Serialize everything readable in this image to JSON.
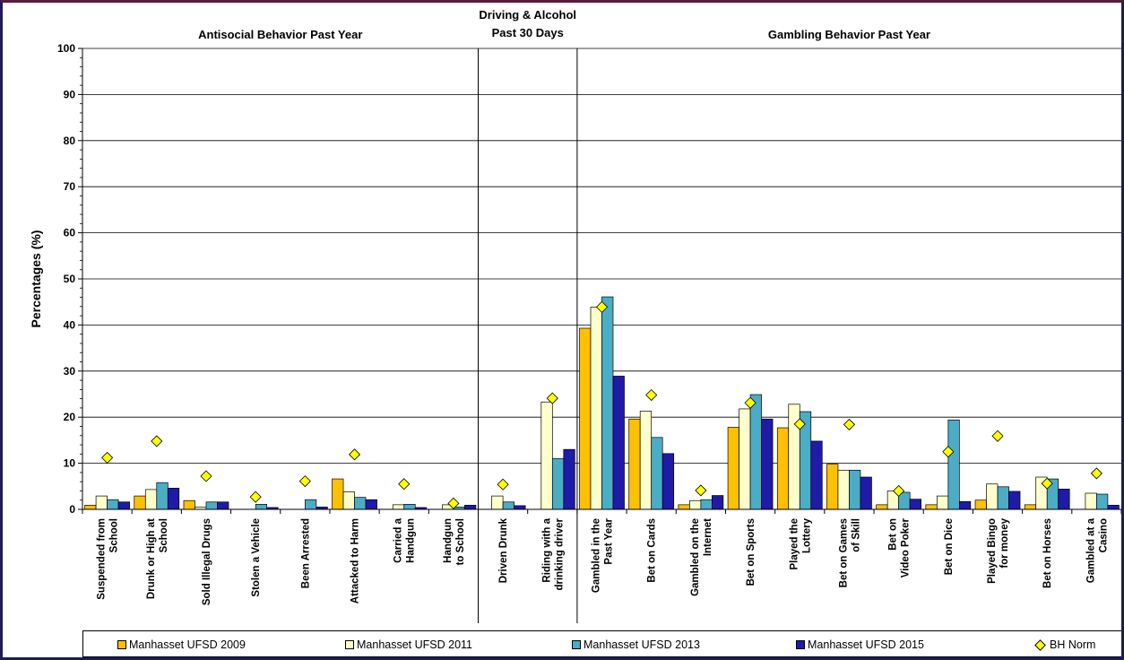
{
  "chart_data": {
    "type": "bar",
    "ylabel": "Percentages (%)",
    "ylim": [
      0,
      100
    ],
    "yticks": [
      0,
      10,
      20,
      30,
      40,
      50,
      60,
      70,
      80,
      90,
      100
    ],
    "grid": true,
    "legend_position": "bottom",
    "sections": [
      {
        "title": [
          "Antisocial Behavior Past Year"
        ],
        "start": 0,
        "end": 8
      },
      {
        "title": [
          "Driving & Alcohol",
          "Past 30 Days"
        ],
        "start": 8,
        "end": 10
      },
      {
        "title": [
          "Gambling Behavior Past Year"
        ],
        "start": 10,
        "end": 21
      }
    ],
    "categories": [
      [
        "Suspended from",
        "School"
      ],
      [
        "Drunk or High at",
        "School"
      ],
      [
        "Sold Illegal Drugs"
      ],
      [
        "Stolen a Vehicle"
      ],
      [
        "Been Arrested"
      ],
      [
        "Attacked to Harm"
      ],
      [
        "Carried a",
        "Handgun"
      ],
      [
        "Handgun",
        "to School"
      ],
      [
        "Driven Drunk"
      ],
      [
        "Riding with a",
        "drinking driver"
      ],
      [
        "Gambled in the",
        "Past Year"
      ],
      [
        "Bet on Cards"
      ],
      [
        "Gambled on the",
        "Internet"
      ],
      [
        "Bet on Sports"
      ],
      [
        "Played the",
        "Lottery"
      ],
      [
        "Bet on Games",
        "of Skill"
      ],
      [
        "Bet on",
        "Video Poker"
      ],
      [
        "Bet on Dice"
      ],
      [
        "Played Bingo",
        "for money"
      ],
      [
        "Bet on Horses"
      ],
      [
        "Gambled at a",
        "Casino"
      ]
    ],
    "series": [
      {
        "name": "Manhasset UFSD 2009",
        "color": "#ffc000",
        "values": [
          0.9,
          2.9,
          1.9,
          0,
          0,
          6.6,
          0,
          0,
          0,
          0,
          39.3,
          19.6,
          1.0,
          17.8,
          17.7,
          9.8,
          1.0,
          1.0,
          2.0,
          1.0,
          0
        ]
      },
      {
        "name": "Manhasset UFSD 2011",
        "color": "#ffffcc",
        "values": [
          2.9,
          4.3,
          0.5,
          0,
          0,
          3.8,
          1.0,
          1.0,
          2.9,
          23.3,
          43.9,
          21.3,
          1.9,
          21.8,
          22.8,
          8.5,
          4.0,
          2.9,
          5.5,
          7.0,
          3.5
        ]
      },
      {
        "name": "Manhasset UFSD 2013",
        "color": "#4bacc6",
        "values": [
          2.1,
          5.8,
          1.6,
          1.1,
          2.1,
          2.6,
          1.1,
          0.5,
          1.6,
          11.0,
          46.1,
          15.6,
          2.1,
          24.9,
          21.2,
          8.5,
          3.7,
          19.4,
          4.9,
          6.6,
          3.3
        ]
      },
      {
        "name": "Manhasset UFSD 2015",
        "color": "#1f1aa8",
        "values": [
          1.6,
          4.6,
          1.6,
          0.4,
          0.5,
          2.1,
          0.4,
          0.9,
          0.8,
          13.0,
          28.9,
          12.1,
          3.0,
          19.6,
          14.8,
          7.0,
          2.2,
          1.7,
          3.9,
          4.4,
          0.9
        ]
      }
    ],
    "norm": {
      "name": "BH Norm",
      "color": "#ffff00",
      "values": [
        11.2,
        14.8,
        7.2,
        2.7,
        6.1,
        11.9,
        5.5,
        1.3,
        5.4,
        24.1,
        43.9,
        24.8,
        4.1,
        23.1,
        18.5,
        18.4,
        4.0,
        12.5,
        15.9,
        5.6,
        7.8
      ]
    }
  }
}
